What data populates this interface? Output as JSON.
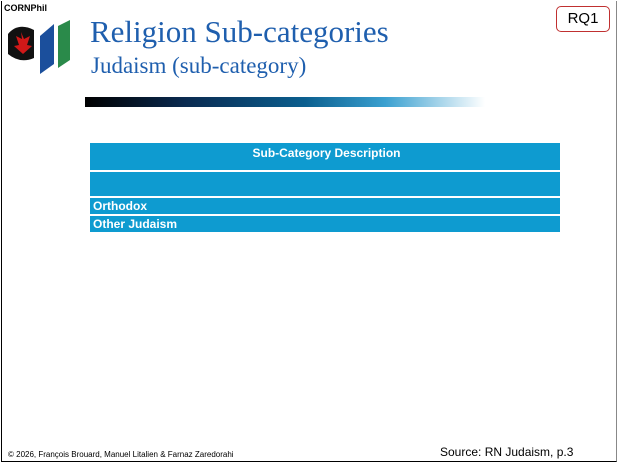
{
  "header": {
    "brand": "CORNPhil",
    "title": "Religion Sub-categories",
    "subtitle": "Judaism (sub-category)",
    "badge": "RQ1"
  },
  "table": {
    "header": "Sub-Category Description",
    "rows": [
      "Orthodox",
      "Other Judaism"
    ]
  },
  "footer": {
    "copyright": "© 2026, François Brouard, Manuel Litalien & Farnaz Zaredorahi",
    "source": "Source: RN Judaism, p.3"
  }
}
